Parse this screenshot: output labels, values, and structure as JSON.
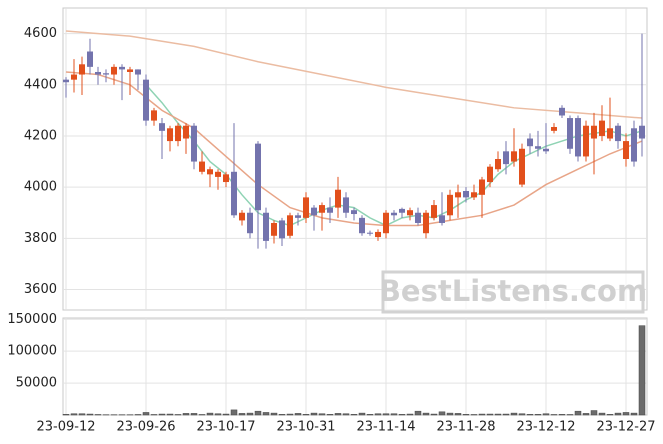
{
  "chart_data": {
    "type": "candlestick",
    "categories": [
      "23-09-12",
      null,
      null,
      null,
      null,
      null,
      null,
      null,
      null,
      null,
      "23-09-26",
      null,
      null,
      null,
      null,
      null,
      null,
      null,
      null,
      null,
      "23-10-17",
      null,
      null,
      null,
      null,
      null,
      null,
      null,
      null,
      null,
      "23-10-31",
      null,
      null,
      null,
      null,
      null,
      null,
      null,
      null,
      null,
      "23-11-14",
      null,
      null,
      null,
      null,
      null,
      null,
      null,
      null,
      null,
      "23-11-28",
      null,
      null,
      null,
      null,
      null,
      null,
      null,
      null,
      null,
      "23-12-12",
      null,
      null,
      null,
      null,
      null,
      null,
      null,
      null,
      null,
      "23-12-27",
      null,
      null
    ],
    "open": [
      4420,
      4420,
      4440,
      4530,
      4450,
      4445,
      4440,
      4470,
      4450,
      4460,
      4420,
      4260,
      4250,
      4180,
      4180,
      4190,
      4240,
      4060,
      4050,
      4040,
      4020,
      4060,
      3870,
      3900,
      4170,
      3900,
      3810,
      3870,
      3810,
      3890,
      3880,
      3920,
      3900,
      3920,
      3920,
      3960,
      3910,
      3880,
      3822,
      3805,
      3820,
      3900,
      3915,
      3890,
      3900,
      3820,
      3880,
      3890,
      3890,
      3960,
      3985,
      3960,
      3970,
      4020,
      4070,
      4140,
      4100,
      4010,
      4190,
      4160,
      4150,
      4220,
      4310,
      4270,
      4270,
      4120,
      4190,
      4200,
      4190,
      4240,
      4110,
      4230,
      4240
    ],
    "high": [
      4430,
      4500,
      4510,
      4580,
      4470,
      4460,
      4480,
      4480,
      4470,
      4460,
      4440,
      4310,
      4270,
      4240,
      4250,
      4250,
      4250,
      4140,
      4080,
      4070,
      4060,
      4250,
      3910,
      3920,
      4180,
      3920,
      3870,
      3880,
      3900,
      3900,
      3980,
      3930,
      3940,
      3960,
      4040,
      3980,
      3920,
      3890,
      3830,
      3835,
      3910,
      3910,
      3920,
      3920,
      3920,
      3910,
      3950,
      3980,
      3990,
      4010,
      4000,
      4010,
      4040,
      4090,
      4140,
      4180,
      4230,
      4170,
      4210,
      4220,
      4250,
      4250,
      4320,
      4280,
      4280,
      4260,
      4290,
      4320,
      4350,
      4250,
      4210,
      4260,
      4600
    ],
    "low": [
      4350,
      4370,
      4360,
      4440,
      4400,
      4410,
      4400,
      4340,
      4360,
      4380,
      4240,
      4240,
      4110,
      4140,
      4160,
      4130,
      4070,
      4050,
      4000,
      3990,
      4000,
      3880,
      3850,
      3800,
      3760,
      3760,
      3780,
      3770,
      3800,
      3850,
      3860,
      3830,
      3830,
      3860,
      3880,
      3880,
      3870,
      3810,
      3810,
      3790,
      3800,
      3870,
      3880,
      3870,
      3850,
      3800,
      3870,
      3850,
      3870,
      3880,
      3940,
      3950,
      3880,
      4000,
      4060,
      4050,
      4080,
      4000,
      4130,
      4120,
      4130,
      4210,
      4270,
      4130,
      4100,
      4100,
      4050,
      4180,
      4180,
      4150,
      4080,
      4080,
      4120
    ],
    "close": [
      4410,
      4440,
      4480,
      4470,
      4440,
      4440,
      4470,
      4460,
      4460,
      4440,
      4260,
      4300,
      4220,
      4230,
      4240,
      4240,
      4100,
      4100,
      4070,
      4060,
      4050,
      3890,
      3900,
      3820,
      3910,
      3790,
      3860,
      3800,
      3890,
      3880,
      3960,
      3890,
      3930,
      3900,
      3990,
      3900,
      3895,
      3820,
      3818,
      3825,
      3900,
      3890,
      3900,
      3910,
      3860,
      3900,
      3930,
      3860,
      3970,
      3980,
      3960,
      3980,
      4030,
      4080,
      4110,
      4090,
      4140,
      4150,
      4160,
      4150,
      4140,
      4235,
      4280,
      4150,
      4120,
      4240,
      4240,
      4260,
      4230,
      4180,
      4180,
      4100,
      4190
    ],
    "up_color": "#e2501c",
    "down_color": "#7373ad",
    "ylim": [
      3520,
      4700
    ],
    "yticks": [
      3600,
      3800,
      4000,
      4200,
      4400,
      4600
    ],
    "grid": true,
    "moving_averages": [
      {
        "color": "#8fd3b4",
        "x": [
          10,
          12,
          14,
          16,
          18,
          20,
          22,
          24,
          26,
          28,
          30,
          32,
          34,
          36,
          38,
          40,
          42,
          44,
          46,
          48,
          50,
          52,
          54,
          56,
          58,
          60,
          62,
          64,
          66,
          68,
          70,
          72
        ],
        "values": [
          4400,
          4330,
          4250,
          4180,
          4100,
          4050,
          3970,
          3900,
          3870,
          3850,
          3880,
          3910,
          3930,
          3920,
          3880,
          3850,
          3880,
          3890,
          3880,
          3910,
          3950,
          3980,
          4050,
          4100,
          4130,
          4160,
          4180,
          4200,
          4210,
          4220,
          4200,
          4220
        ]
      },
      {
        "color": "#e8a588",
        "x": [
          0,
          4,
          8,
          12,
          16,
          20,
          24,
          28,
          32,
          36,
          40,
          44,
          48,
          52,
          56,
          60,
          64,
          68,
          72
        ],
        "values": [
          4450,
          4440,
          4400,
          4300,
          4230,
          4120,
          4010,
          3920,
          3880,
          3860,
          3850,
          3850,
          3870,
          3890,
          3930,
          4010,
          4070,
          4130,
          4180
        ]
      },
      {
        "color": "#ebbca2",
        "x": [
          0,
          8,
          16,
          24,
          32,
          40,
          48,
          56,
          64,
          72
        ],
        "values": [
          4610,
          4590,
          4550,
          4490,
          4440,
          4390,
          4350,
          4310,
          4290,
          4270
        ]
      }
    ],
    "volume": {
      "color": "#6b6b6b",
      "ylim": [
        0,
        152000
      ],
      "yticks": [
        50000,
        100000,
        150000
      ],
      "values": [
        1000,
        2000,
        2000,
        1500,
        800,
        500,
        500,
        500,
        500,
        800,
        4000,
        800,
        1500,
        1500,
        800,
        2500,
        2500,
        800,
        3000,
        2000,
        1500,
        8000,
        2500,
        3000,
        6000,
        4000,
        3000,
        1000,
        1500,
        2500,
        1000,
        3000,
        2000,
        1000,
        2500,
        2000,
        1000,
        3000,
        1000,
        2000,
        2000,
        2000,
        1000,
        1500,
        6000,
        3000,
        1500,
        5000,
        3000,
        2500,
        1000,
        800,
        1500,
        1500,
        1500,
        1500,
        3000,
        2000,
        1000,
        1000,
        2000,
        800,
        1000,
        800,
        6000,
        2500,
        7000,
        3000,
        1000,
        3000,
        4000,
        3000,
        140000
      ]
    },
    "watermark": "BestListens.com"
  }
}
